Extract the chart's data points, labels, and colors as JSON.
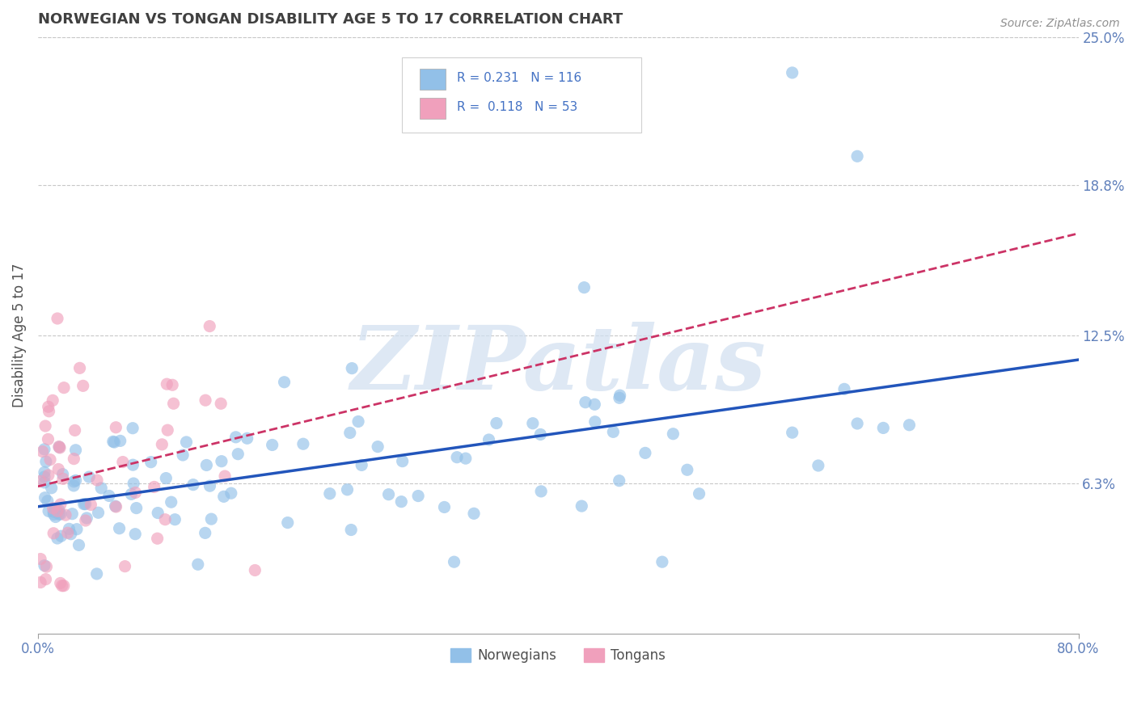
{
  "title": "NORWEGIAN VS TONGAN DISABILITY AGE 5 TO 17 CORRELATION CHART",
  "source_text": "Source: ZipAtlas.com",
  "ylabel_label": "Disability Age 5 to 17",
  "xlim": [
    0.0,
    0.8
  ],
  "ylim": [
    0.0,
    0.25
  ],
  "xtick_positions": [
    0.0,
    0.8
  ],
  "xtick_labels": [
    "0.0%",
    "80.0%"
  ],
  "ytick_labels": [
    "6.3%",
    "12.5%",
    "18.8%",
    "25.0%"
  ],
  "ytick_positions": [
    0.063,
    0.125,
    0.188,
    0.25
  ],
  "norwegian_color": "#92C0E8",
  "tongan_color": "#F0A0BC",
  "trend_norwegian_color": "#2255BB",
  "trend_tongan_color": "#CC3366",
  "watermark_color": "#D0DFF0",
  "watermark_text": "ZIPatlas",
  "legend_R_norwegian": "0.231",
  "legend_N_norwegian": "116",
  "legend_R_tongan": "0.118",
  "legend_N_tongan": "53",
  "legend_label_norwegian": "Norwegians",
  "legend_label_tongan": "Tongans",
  "background_color": "#FFFFFF",
  "grid_color": "#C8C8C8",
  "title_color": "#404040",
  "axis_label_color": "#505050",
  "tick_label_color": "#6080BB",
  "legend_text_color": "#4472C4",
  "source_color": "#909090"
}
